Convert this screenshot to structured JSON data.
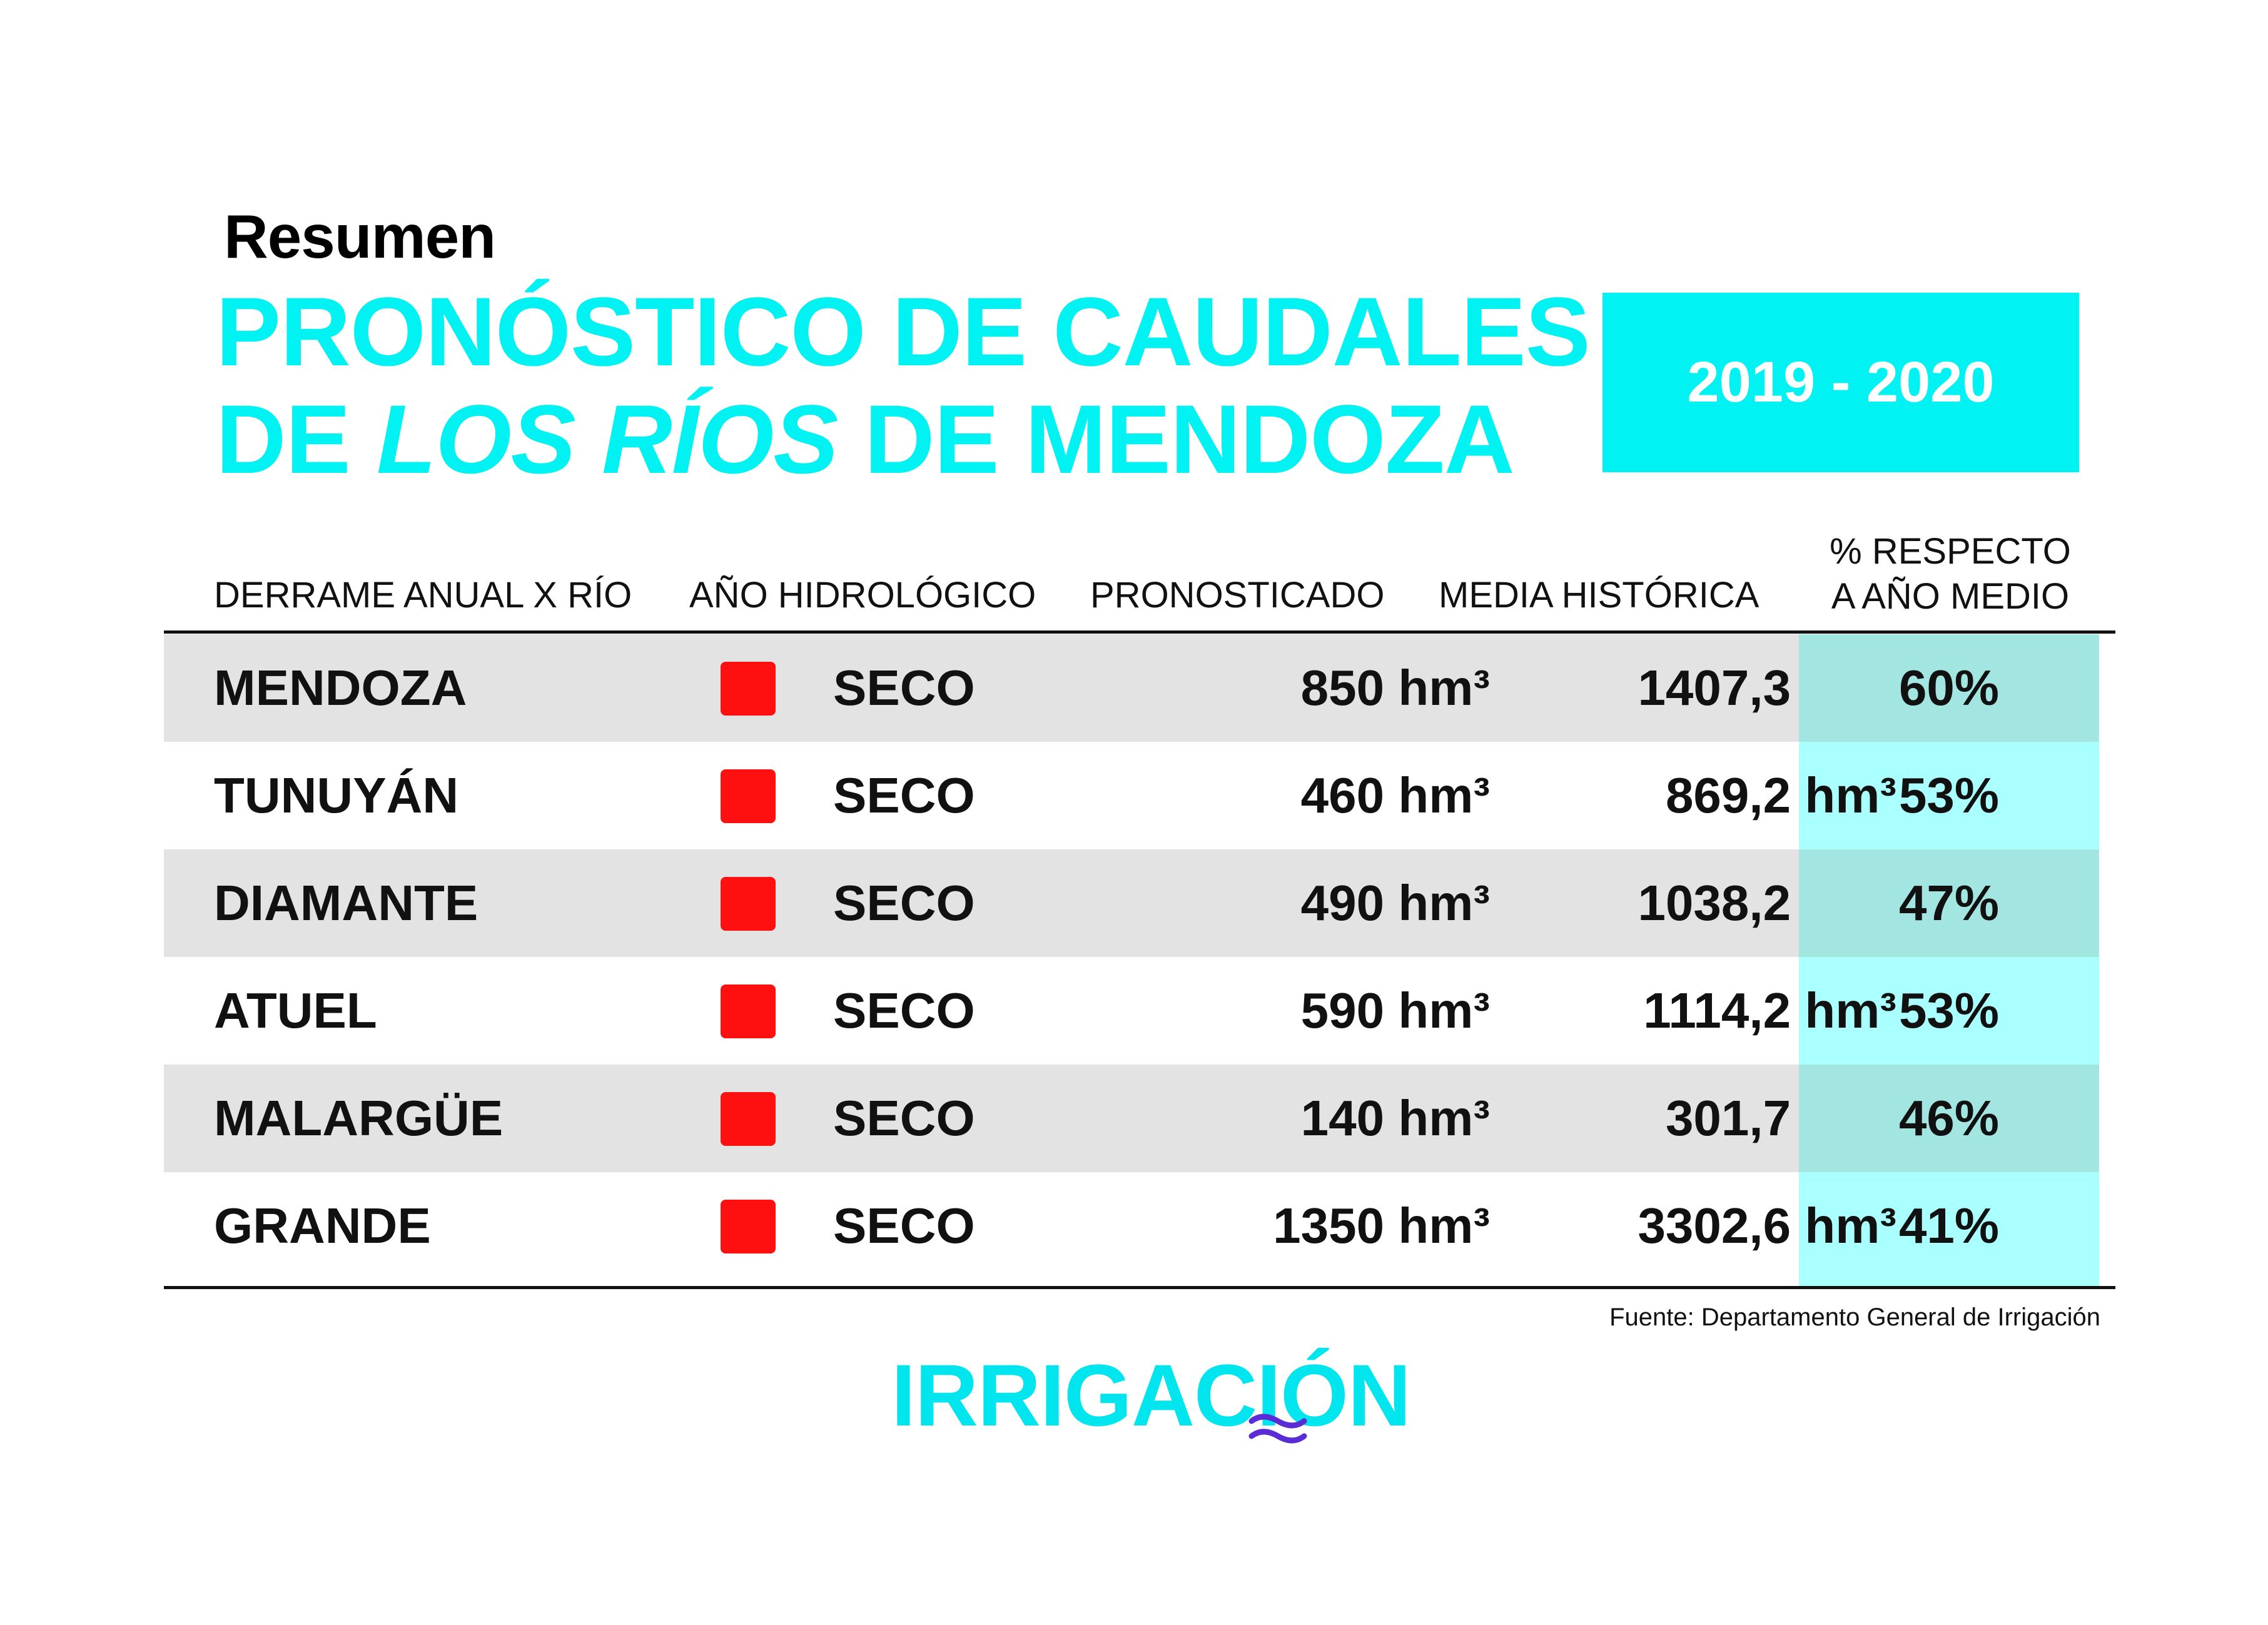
{
  "header": {
    "kicker": "Resumen",
    "title_line1": "PRONÓSTICO DE CAUDALES",
    "title_line2_pre": "DE ",
    "title_line2_italic": "LOS RÍOS",
    "title_line2_post": " DE MENDOZA",
    "period": "2019 - 2020"
  },
  "table": {
    "columns": {
      "river": "DERRAME ANUAL X RÍO",
      "tipo": "AÑO HIDROLÓGICO",
      "pron": "PRONOSTICADO",
      "media": "MEDIA HISTÓRICA",
      "pct_line1": "% RESPECTO",
      "pct_line2": "A AÑO MEDIO"
    },
    "rows": [
      {
        "river": "MENDOZA",
        "tipo": "SECO",
        "pron": "850 hm³",
        "media": "1407,3  hm³",
        "pct": "60%"
      },
      {
        "river": "TUNUYÁN",
        "tipo": "SECO",
        "pron": "460 hm³",
        "media": "869,2  hm³",
        "pct": "53%"
      },
      {
        "river": "DIAMANTE",
        "tipo": "SECO",
        "pron": "490 hm³",
        "media": "1038,2  hm³",
        "pct": "47%"
      },
      {
        "river": "ATUEL",
        "tipo": "SECO",
        "pron": "590 hm³",
        "media": "1114,2  hm³",
        "pct": "53%"
      },
      {
        "river": "MALARGÜE",
        "tipo": "SECO",
        "pron": "140 hm³",
        "media": "301,7  hm³",
        "pct": "46%"
      },
      {
        "river": "GRANDE",
        "tipo": "SECO",
        "pron": "1350 hm³",
        "media": "3302,6  hm³",
        "pct": "41%"
      }
    ]
  },
  "colors": {
    "accent": "#00f2f2",
    "status_seco": "#ff1010",
    "logo_wave": "#5b2bd6"
  },
  "footer": {
    "source": "Fuente: Departamento General de Irrigación",
    "logo_text": "IRRIGACIÓN"
  }
}
